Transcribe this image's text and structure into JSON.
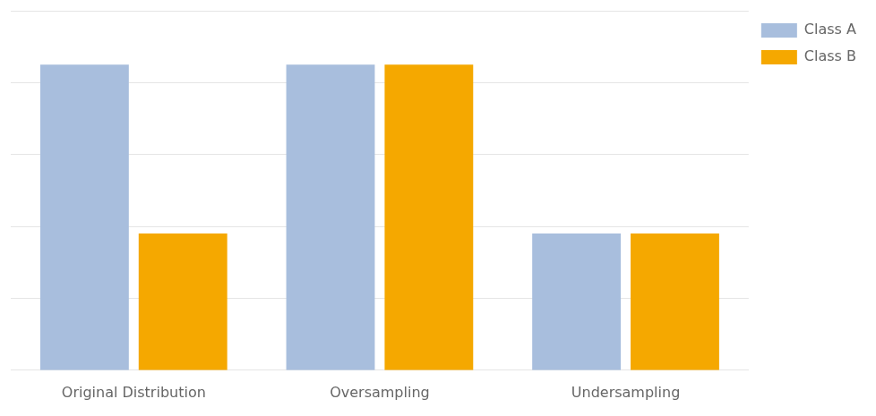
{
  "chart_data": {
    "type": "bar",
    "categories": [
      "Original Distribution",
      "Oversampling",
      "Undersampling"
    ],
    "series": [
      {
        "name": "Class A",
        "color": "#a8bedd",
        "values": [
          0.85,
          0.85,
          0.38
        ]
      },
      {
        "name": "Class B",
        "color": "#f5a800",
        "values": [
          0.38,
          0.85,
          0.38
        ]
      }
    ],
    "ylim": [
      0,
      1.0
    ],
    "yticks": [
      0.2,
      0.4,
      0.6,
      0.8,
      1.0
    ],
    "grid": true,
    "tick_labels": "x",
    "legend": "upper right"
  }
}
